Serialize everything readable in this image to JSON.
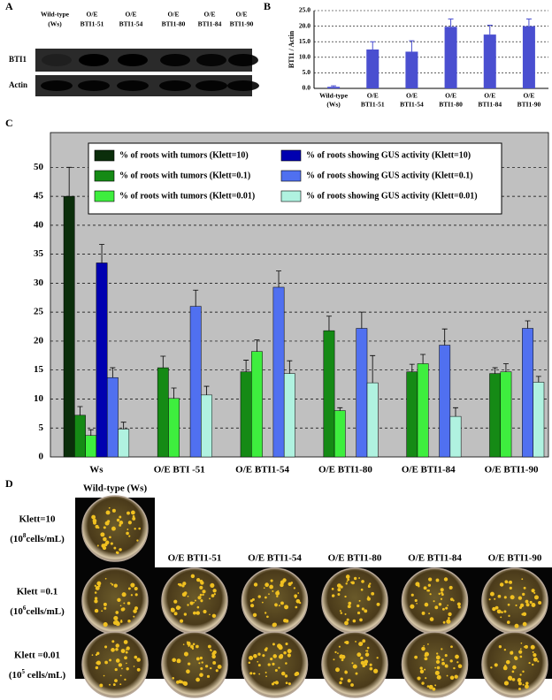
{
  "panels": {
    "a": "A",
    "b": "B",
    "c": "C",
    "d": "D"
  },
  "blot": {
    "columns": [
      [
        "Wild-type",
        "(Ws)"
      ],
      [
        "O/E",
        "BTI1-51"
      ],
      [
        "O/E",
        "BTI1-54"
      ],
      [
        "O/E",
        "BTI1-80"
      ],
      [
        "O/E",
        "BTI1-84"
      ],
      [
        "O/E",
        "BTI1-90"
      ]
    ],
    "rows": [
      "BTI1",
      "Actin"
    ]
  },
  "chart_data": [
    {
      "type": "bar",
      "ylabel": "BTI1 / Actin",
      "categories": [
        [
          "Wild-type",
          "(Ws)"
        ],
        [
          "O/E",
          "BTI1-51"
        ],
        [
          "O/E",
          "BTI1-54"
        ],
        [
          "O/E",
          "BTI1-80"
        ],
        [
          "O/E",
          "BTI1-84"
        ],
        [
          "O/E",
          "BTI1-90"
        ]
      ],
      "values": [
        0.5,
        12.5,
        11.8,
        19.8,
        17.3,
        20.0
      ],
      "errors": [
        0.3,
        2.5,
        3.5,
        2.5,
        3.0,
        2.3
      ],
      "color": "#4a4fd0",
      "grid": true,
      "ylim": [
        0,
        25
      ],
      "yticks": [
        {
          "value": 0,
          "label": "0.0"
        },
        {
          "value": 5,
          "label": "5.0"
        },
        {
          "value": 10,
          "label": "10.0"
        },
        {
          "value": 15,
          "label": "15.0"
        },
        {
          "value": 20,
          "label": "20.0"
        },
        {
          "value": 25,
          "label": "25.0"
        }
      ]
    },
    {
      "type": "bar",
      "grid": true,
      "categories": [
        "Ws",
        "O/E BTI -51",
        "O/E BTI1-54",
        "O/E BTI1-80",
        "O/E BTI1-84",
        "O/E BTI1-90"
      ],
      "ylim": [
        0,
        56
      ],
      "yticks": [
        0,
        5,
        10,
        15,
        20,
        25,
        30,
        35,
        40,
        45,
        50
      ],
      "series": [
        {
          "name": "% of roots with tumors (Klett=10)",
          "color": "#0b2e0b",
          "values": [
            45,
            null,
            null,
            null,
            null,
            null
          ],
          "errors": [
            5,
            null,
            null,
            null,
            null,
            null
          ]
        },
        {
          "name": "% of roots with tumors (Klett=0.1)",
          "color": "#158a15",
          "values": [
            7.2,
            15.4,
            14.7,
            21.8,
            14.7,
            14.4
          ],
          "errors": [
            1.5,
            2,
            2,
            2.5,
            1.3,
            1
          ]
        },
        {
          "name": "% of roots with tumors (Klett=0.01)",
          "color": "#3eee3e",
          "values": [
            3.7,
            10.1,
            18.2,
            8,
            16.1,
            14.7
          ],
          "errors": [
            1,
            1.8,
            2,
            0.5,
            1.6,
            1.4
          ]
        },
        {
          "name": "% of roots showing GUS activity (Klett=10)",
          "color": "#0000b0",
          "values": [
            33.5,
            null,
            null,
            null,
            null,
            null
          ],
          "errors": [
            3.2,
            null,
            null,
            null,
            null,
            null
          ]
        },
        {
          "name": "% of roots showing GUS activity (Klett=0.1)",
          "color": "#5070f0",
          "values": [
            13.7,
            26,
            29.3,
            22.2,
            19.3,
            22.2
          ],
          "errors": [
            1.7,
            2.8,
            2.8,
            2.8,
            2.8,
            1.3
          ]
        },
        {
          "name": "% of roots showing GUS activity (Klett=0.01)",
          "color": "#b0f2e0",
          "values": [
            4.8,
            10.7,
            14.4,
            12.8,
            7,
            12.9
          ],
          "errors": [
            1.2,
            1.5,
            2.2,
            4.7,
            1.5,
            1
          ]
        }
      ]
    }
  ],
  "plates": {
    "title": "Wild-type (Ws)",
    "columns": [
      "O/E BTI1-51",
      "O/E BTI1-54",
      "O/E BTI1-80",
      "O/E BTI1-84",
      "O/E BTI1-90"
    ],
    "rows": [
      {
        "klett": "Klett=10",
        "density": [
          "(10",
          "8",
          "cells/mL)"
        ]
      },
      {
        "klett": "Klett =0.1",
        "density": [
          "(10",
          "6",
          "cells/mL)"
        ]
      },
      {
        "klett": "Klett =0.01",
        "density": [
          "(10",
          "5",
          " cells/mL)"
        ]
      }
    ]
  }
}
